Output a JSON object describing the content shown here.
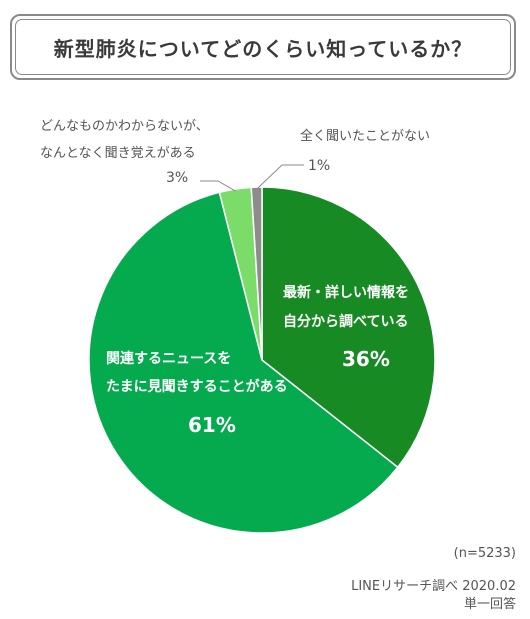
{
  "title": "新型肺炎についてどのくらい知っているか？",
  "colors": {
    "slice_dark_green": "#178a24",
    "slice_green": "#05aa4f",
    "slice_light_green": "#7bdc6a",
    "slice_gray": "#8c8c8c",
    "text_gray": "#555555"
  },
  "chart_data": {
    "type": "pie",
    "title": "新型肺炎についてどのくらい知っているか？",
    "slices": [
      {
        "label_lines": [
          "最新・詳しい情報を",
          "自分から調べている"
        ],
        "value": 36,
        "value_label": "36%",
        "color": "#178a24"
      },
      {
        "label_lines": [
          "関連するニュースを",
          "たまに見聞きすることがある"
        ],
        "value": 61,
        "value_label": "61%",
        "color": "#05aa4f"
      },
      {
        "label_lines": [
          "どんなものかわからないが、",
          "なんとなく聞き覚えがある"
        ],
        "value": 3,
        "value_label": "3%",
        "color": "#7bdc6a"
      },
      {
        "label_lines": [
          "全く聞いたことがない"
        ],
        "value": 1,
        "value_label": "1%",
        "color": "#8c8c8c"
      }
    ]
  },
  "footer": {
    "sample": "(n=5233)",
    "source": "LINEリサーチ調べ 2020.02",
    "note": "単一回答"
  }
}
